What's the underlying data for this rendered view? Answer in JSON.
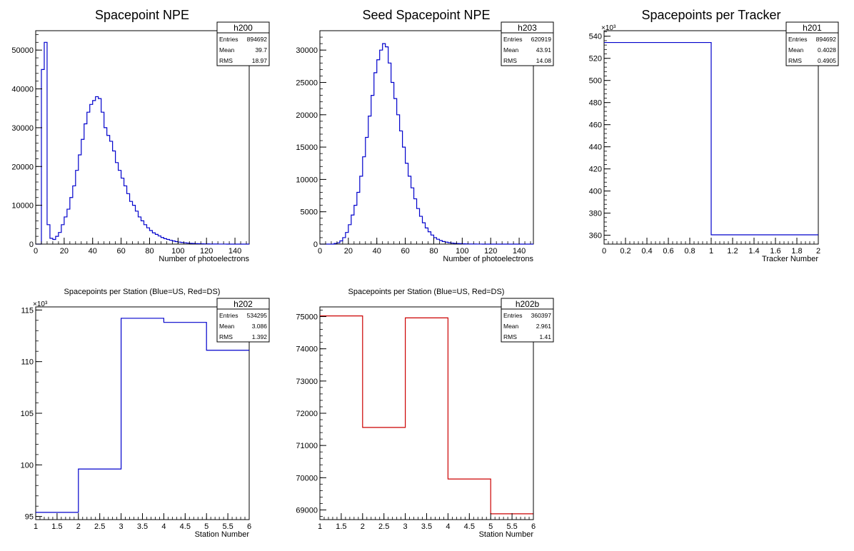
{
  "chart_data": [
    {
      "id": "h200",
      "type": "histogram",
      "title": "Spacepoint NPE",
      "title_style": "large",
      "xlabel": "Number of photoelectrons",
      "ylabel": "",
      "color": "#0000cc",
      "xlim": [
        0,
        150
      ],
      "ylim": [
        0,
        55000
      ],
      "x_ticks": [
        0,
        20,
        40,
        60,
        80,
        100,
        120,
        140
      ],
      "y_ticks": [
        0,
        10000,
        20000,
        30000,
        40000,
        50000
      ],
      "y_multiplier": "",
      "bin_edges": [
        0,
        2,
        4,
        6,
        8,
        10,
        12,
        14,
        16,
        18,
        20,
        22,
        24,
        26,
        28,
        30,
        32,
        34,
        36,
        38,
        40,
        42,
        44,
        46,
        48,
        50,
        52,
        54,
        56,
        58,
        60,
        62,
        64,
        66,
        68,
        70,
        72,
        74,
        76,
        78,
        80,
        82,
        84,
        86,
        88,
        90,
        92,
        94,
        96,
        98,
        100,
        102,
        104,
        106,
        108,
        110,
        112,
        114,
        116,
        118,
        120,
        122,
        124,
        126,
        128,
        130,
        132,
        134,
        136,
        138,
        140,
        142,
        144,
        146,
        148,
        150
      ],
      "values": [
        0,
        0,
        45000,
        52000,
        5000,
        1500,
        1200,
        2000,
        3000,
        5000,
        7000,
        9000,
        12000,
        15000,
        19000,
        23000,
        27000,
        31000,
        34000,
        36000,
        37000,
        38000,
        37500,
        34000,
        30000,
        28000,
        26500,
        24000,
        21000,
        19000,
        17000,
        15000,
        13000,
        11000,
        10000,
        8500,
        7000,
        6000,
        5000,
        4200,
        3500,
        2900,
        2500,
        2100,
        1700,
        1400,
        1200,
        1000,
        800,
        650,
        520,
        420,
        330,
        260,
        200,
        160,
        130,
        100,
        80,
        60,
        45,
        35,
        25,
        20,
        15,
        10,
        8,
        6,
        4,
        3,
        2,
        1,
        0,
        0,
        0
      ],
      "stats": {
        "name": "h200",
        "entries": "894692",
        "mean": "39.7",
        "rms": "18.97"
      },
      "stats_labels": {
        "entries": "Entries",
        "mean": "Mean",
        "rms": "RMS"
      }
    },
    {
      "id": "h203",
      "type": "histogram",
      "title": "Seed Spacepoint NPE",
      "title_style": "large",
      "xlabel": "Number of photoelectrons",
      "ylabel": "",
      "color": "#0000cc",
      "xlim": [
        0,
        150
      ],
      "ylim": [
        0,
        33000
      ],
      "x_ticks": [
        0,
        20,
        40,
        60,
        80,
        100,
        120,
        140
      ],
      "y_ticks": [
        0,
        5000,
        10000,
        15000,
        20000,
        25000,
        30000
      ],
      "y_multiplier": "",
      "bin_edges": [
        0,
        2,
        4,
        6,
        8,
        10,
        12,
        14,
        16,
        18,
        20,
        22,
        24,
        26,
        28,
        30,
        32,
        34,
        36,
        38,
        40,
        42,
        44,
        46,
        48,
        50,
        52,
        54,
        56,
        58,
        60,
        62,
        64,
        66,
        68,
        70,
        72,
        74,
        76,
        78,
        80,
        82,
        84,
        86,
        88,
        90,
        92,
        94,
        96,
        98,
        100,
        102,
        104,
        106,
        108,
        110,
        112,
        114,
        116,
        118,
        120,
        122,
        124,
        126,
        128,
        130,
        132,
        134,
        136,
        138,
        140,
        142,
        144,
        146,
        148,
        150
      ],
      "values": [
        0,
        0,
        0,
        0,
        0,
        100,
        200,
        500,
        1000,
        1800,
        3000,
        4500,
        6000,
        8000,
        10500,
        13500,
        16500,
        19800,
        23000,
        26500,
        28500,
        30000,
        31000,
        30500,
        28000,
        25000,
        22500,
        20000,
        17500,
        15000,
        12500,
        10500,
        8700,
        7000,
        5500,
        4300,
        3300,
        2500,
        1900,
        1400,
        1000,
        750,
        550,
        400,
        300,
        220,
        160,
        120,
        90,
        65,
        45,
        30,
        20,
        15,
        10,
        7,
        5,
        3,
        2,
        1,
        0,
        0,
        0,
        0,
        0,
        0,
        0,
        0,
        0,
        0,
        0,
        0,
        0,
        0,
        0
      ],
      "stats": {
        "name": "h203",
        "entries": "620919",
        "mean": "43.91",
        "rms": "14.08"
      },
      "stats_labels": {
        "entries": "Entries",
        "mean": "Mean",
        "rms": "RMS"
      }
    },
    {
      "id": "h201",
      "type": "histogram",
      "title": "Spacepoints per Tracker",
      "title_style": "large",
      "xlabel": "Tracker Number",
      "ylabel": "",
      "color": "#0000cc",
      "xlim": [
        0,
        2
      ],
      "ylim": [
        352,
        545
      ],
      "x_ticks": [
        0,
        0.2,
        0.4,
        0.6,
        0.8,
        1,
        1.2,
        1.4,
        1.6,
        1.8,
        2
      ],
      "y_ticks": [
        360,
        380,
        400,
        420,
        440,
        460,
        480,
        500,
        520,
        540
      ],
      "y_multiplier": "×10³",
      "bin_edges": [
        0,
        1,
        2
      ],
      "values": [
        534.3,
        360.4
      ],
      "stats": {
        "name": "h201",
        "entries": "894692",
        "mean": "0.4028",
        "rms": "0.4905"
      },
      "stats_labels": {
        "entries": "Entries",
        "mean": "Mean",
        "rms": "RMS"
      }
    },
    {
      "id": "h202",
      "type": "histogram",
      "title": "Spacepoints per Station (Blue=US, Red=DS)",
      "title_style": "small",
      "xlabel": "Station Number",
      "ylabel": "",
      "color": "#0000cc",
      "xlim": [
        1,
        6
      ],
      "ylim": [
        94.7,
        115.3
      ],
      "x_ticks": [
        1,
        1.5,
        2,
        2.5,
        3,
        3.5,
        4,
        4.5,
        5,
        5.5,
        6
      ],
      "y_ticks": [
        95,
        100,
        105,
        110,
        115
      ],
      "y_multiplier": "×10³",
      "bin_edges": [
        1,
        2,
        3,
        4,
        5,
        6
      ],
      "values": [
        95.4,
        99.6,
        114.2,
        113.8,
        111.1
      ],
      "stats": {
        "name": "h202",
        "entries": "534295",
        "mean": "3.086",
        "rms": "1.392"
      },
      "stats_labels": {
        "entries": "Entries",
        "mean": "Mean",
        "rms": "RMS"
      }
    },
    {
      "id": "h202b",
      "type": "histogram",
      "title": "Spacepoints per Station (Blue=US, Red=DS)",
      "title_style": "small",
      "xlabel": "Station Number",
      "ylabel": "",
      "color": "#cc0000",
      "xlim": [
        1,
        6
      ],
      "ylim": [
        68700,
        75300
      ],
      "x_ticks": [
        1,
        1.5,
        2,
        2.5,
        3,
        3.5,
        4,
        4.5,
        5,
        5.5,
        6
      ],
      "y_ticks": [
        69000,
        70000,
        71000,
        72000,
        73000,
        74000,
        75000
      ],
      "y_multiplier": "",
      "bin_edges": [
        1,
        2,
        3,
        4,
        5,
        6
      ],
      "values": [
        75020,
        71560,
        74960,
        69960,
        68880
      ],
      "stats": {
        "name": "h202b",
        "entries": "360397",
        "mean": "2.961",
        "rms": "1.41"
      },
      "stats_labels": {
        "entries": "Entries",
        "mean": "Mean",
        "rms": "RMS"
      }
    }
  ]
}
